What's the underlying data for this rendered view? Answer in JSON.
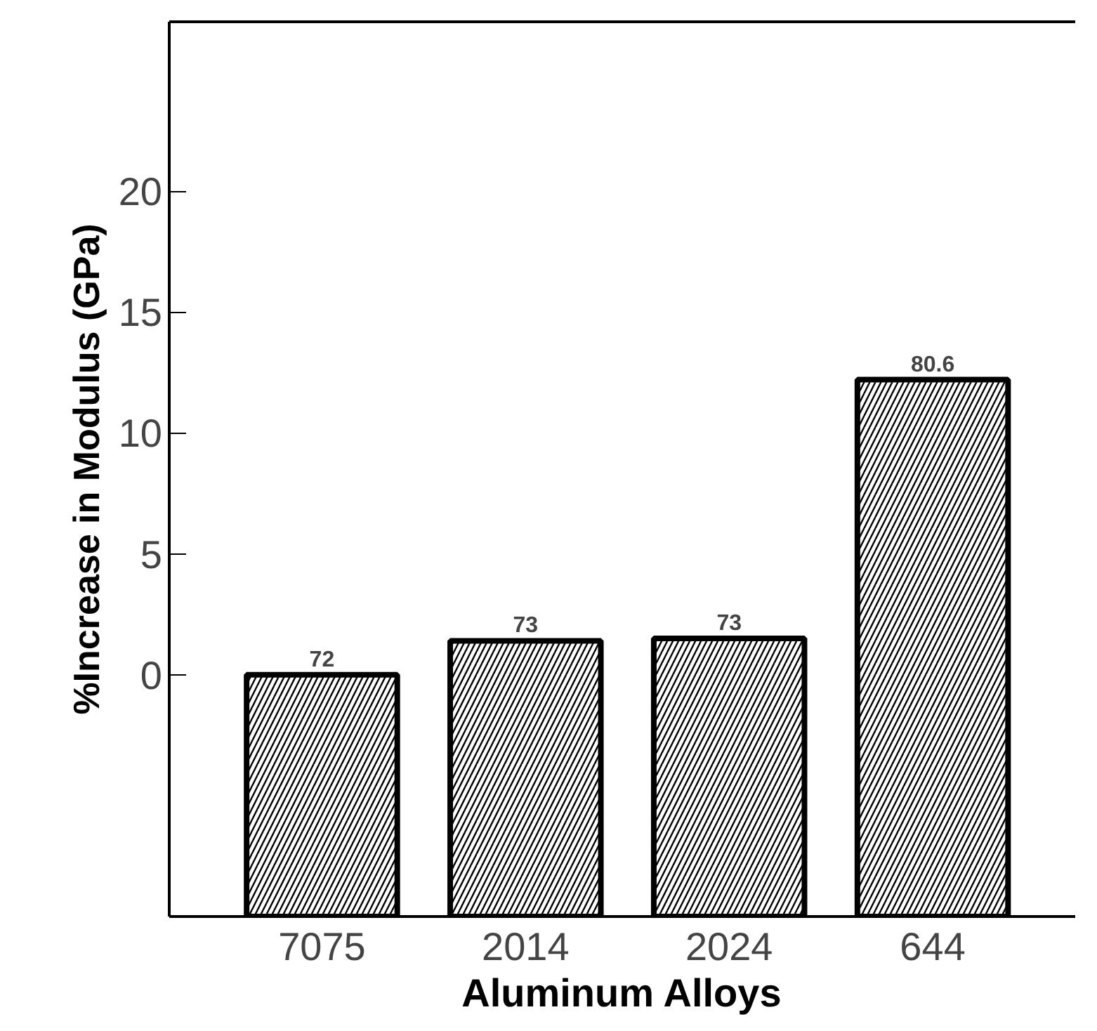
{
  "chart_data": {
    "type": "bar",
    "xlabel": "Aluminum Alloys",
    "ylabel": "%Increase in Modulus (GPa)",
    "categories": [
      "7075",
      "2014",
      "2024",
      "644"
    ],
    "base": [
      -10,
      -10,
      -10,
      -10
    ],
    "values": [
      10,
      11.4,
      11.5,
      22.2
    ],
    "annotations": [
      {
        "text": "72",
        "x": "7075",
        "y": 0
      },
      {
        "text": "73",
        "x": "2014",
        "y": 1.4
      },
      {
        "text": "73",
        "x": "2024",
        "y": 1.5
      },
      {
        "text": "80.6",
        "x": "644",
        "y": 12.2
      }
    ],
    "color": "#000000",
    "ylim": [
      -10,
      27
    ],
    "yticks": [
      0,
      5,
      10,
      15,
      20
    ],
    "grid": false
  }
}
